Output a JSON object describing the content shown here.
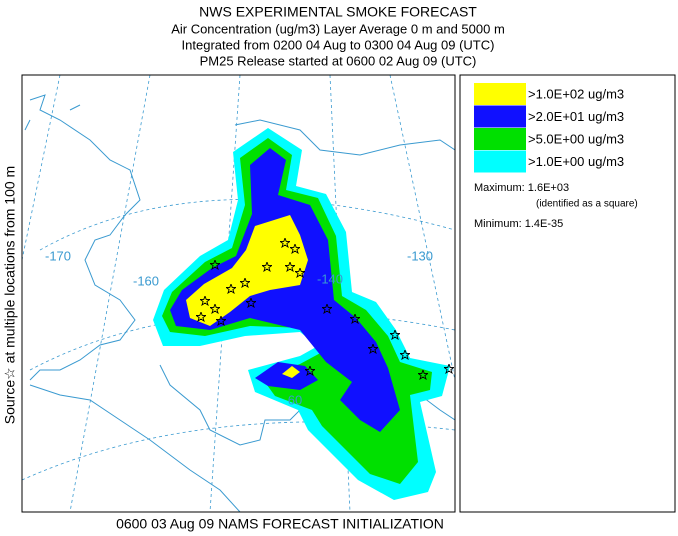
{
  "header": {
    "title": "NWS EXPERIMENTAL SMOKE FORECAST",
    "lines": [
      "Air Concentration (ug/m3) Layer Average    0 m and  5000 m",
      "Integrated from 0200 04 Aug to 0300 04 Aug 09 (UTC)",
      "PM25 Release started at 0600 02 Aug 09 (UTC)"
    ]
  },
  "side_label": "Source☆ at multiple locations from  100 m",
  "map": {
    "labels": [
      "-170",
      "-160",
      "-140",
      "-130",
      "60"
    ]
  },
  "legend": {
    "items": [
      {
        "label": ">1.0E+02 ug/m3",
        "color": "#ffff00"
      },
      {
        "label": ">2.0E+01 ug/m3",
        "color": "#1010ff"
      },
      {
        "label": ">5.0E+00 ug/m3",
        "color": "#00e000"
      },
      {
        "label": ">1.0E+00 ug/m3",
        "color": "#00ffff"
      }
    ],
    "maximum": "Maximum: 1.6E+03",
    "maximum_note": "(identified as a square)",
    "minimum": "Minimum: 1.4E-35"
  },
  "footer": "0600 03 Aug 09 NAMS FORECAST INITIALIZATION"
}
